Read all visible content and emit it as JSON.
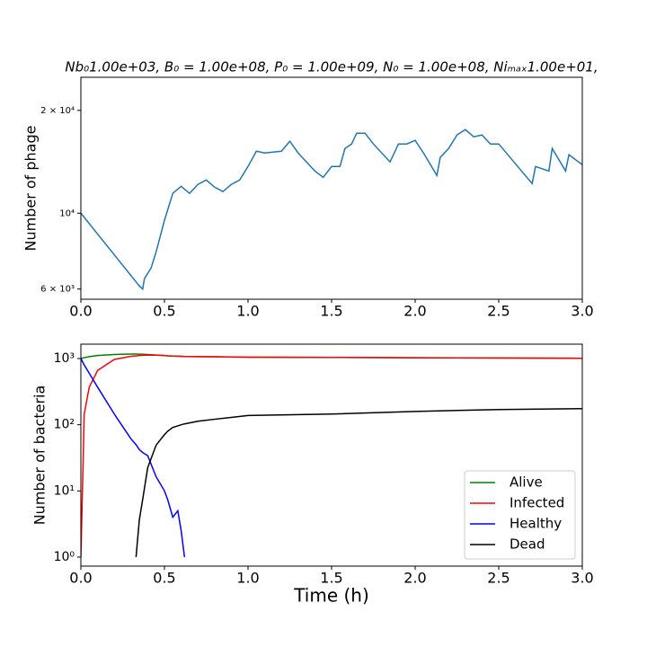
{
  "chart_data": [
    {
      "type": "line",
      "title": "Nb₀1.00e+03, B₀ = 1.00e+08, P₀ = 1.00e+09, N₀ = 1.00e+08, Niₘₐₓ1.00e+01,",
      "ylabel": "Number of phage",
      "yscale": "log",
      "xlim": [
        0,
        3
      ],
      "ylim": [
        5600,
        25000
      ],
      "xticks": [
        {
          "value": 0,
          "label": "0.0"
        },
        0.5,
        {
          "value": 1,
          "label": "1.0"
        },
        1.5,
        {
          "value": 2,
          "label": "2.0"
        },
        2.5,
        {
          "value": 3,
          "label": "3.0"
        }
      ],
      "yticks": [
        {
          "value": 6000,
          "label": "6 × 10³"
        },
        {
          "value": 10000,
          "label": "10⁴"
        },
        {
          "value": 20000,
          "label": "2 × 10⁴"
        }
      ],
      "x": [
        0,
        0.35,
        0.37,
        0.38,
        0.42,
        0.45,
        0.5,
        0.55,
        0.6,
        0.65,
        0.7,
        0.75,
        0.8,
        0.85,
        0.9,
        0.95,
        1.0,
        1.05,
        1.1,
        1.2,
        1.25,
        1.3,
        1.35,
        1.4,
        1.45,
        1.5,
        1.55,
        1.58,
        1.62,
        1.65,
        1.7,
        1.75,
        1.85,
        1.9,
        1.95,
        2.0,
        2.05,
        2.13,
        2.15,
        2.2,
        2.25,
        2.3,
        2.35,
        2.4,
        2.45,
        2.5,
        2.7,
        2.72,
        2.8,
        2.82,
        2.9,
        2.92,
        3.0
      ],
      "series": [
        {
          "color": "#1f77b4",
          "values": [
            10000,
            6120,
            6000,
            6430,
            6910,
            7700,
            9530,
            11430,
            11990,
            11430,
            12140,
            12510,
            11920,
            11570,
            12140,
            12510,
            13700,
            15190,
            15010,
            15190,
            16240,
            15010,
            14130,
            13290,
            12740,
            13700,
            13700,
            15470,
            15950,
            17150,
            17150,
            15950,
            14130,
            15950,
            15950,
            16340,
            15010,
            12900,
            14560,
            15470,
            16940,
            17570,
            16740,
            16940,
            15950,
            15950,
            12210,
            13700,
            13290,
            15470,
            13290,
            14830,
            13870
          ]
        }
      ]
    },
    {
      "type": "line",
      "xlabel": "Time (h)",
      "ylabel": "Number of bacteria",
      "yscale": "log",
      "legend": "lower right",
      "xlim": [
        0,
        3
      ],
      "ylim": [
        0.73,
        1650
      ],
      "xticks": [
        {
          "value": 0,
          "label": "0.0"
        },
        0.5,
        {
          "value": 1,
          "label": "1.0"
        },
        1.5,
        {
          "value": 2,
          "label": "2.0"
        },
        2.5,
        {
          "value": 3,
          "label": "3.0"
        }
      ],
      "yticks": [
        {
          "value": 1,
          "label": "10⁰"
        },
        {
          "value": 10,
          "label": "10¹"
        },
        {
          "value": 100,
          "label": "10²"
        },
        {
          "value": 1000,
          "label": "10³"
        }
      ],
      "x": [
        0,
        0.02,
        0.05,
        0.1,
        0.2,
        0.3,
        0.33,
        0.35,
        0.37,
        0.4,
        0.45,
        0.5,
        0.52,
        0.55,
        0.58,
        0.6,
        0.62,
        0.7,
        0.8,
        1.0,
        1.5,
        2.0,
        2.5,
        3.0
      ],
      "series": [
        {
          "name": "Alive",
          "color": "#008000",
          "values": [
            1000,
            1030,
            1070,
            1110,
            1150,
            1170,
            1170,
            1165,
            1160,
            1150,
            1130,
            1110,
            1100,
            1090,
            1085,
            1080,
            1075,
            1070,
            1065,
            1050,
            1040,
            1030,
            1020,
            1010
          ]
        },
        {
          "name": "Infected",
          "color": "#ff0000",
          "values": [
            1,
            145,
            370,
            660,
            970,
            1080,
            1100,
            1110,
            1120,
            1130,
            1125,
            1110,
            1100,
            1090,
            1085,
            1080,
            1075,
            1070,
            1065,
            1050,
            1040,
            1030,
            1020,
            1010
          ]
        },
        {
          "name": "Healthy",
          "color": "#0000ff",
          "values": [
            1000,
            800,
            600,
            370,
            145,
            61,
            50,
            42,
            38,
            34,
            16.4,
            10,
            7.3,
            4,
            5,
            2.5,
            1,
            null,
            null,
            null,
            null,
            null,
            null,
            null
          ]
        },
        {
          "name": "Dead",
          "color": "#000000",
          "values": [
            null,
            null,
            null,
            null,
            null,
            null,
            1,
            3.7,
            7.5,
            22.5,
            49,
            71,
            80,
            91,
            96,
            100,
            103,
            113,
            121,
            138,
            145,
            159,
            170,
            175
          ]
        }
      ]
    }
  ]
}
